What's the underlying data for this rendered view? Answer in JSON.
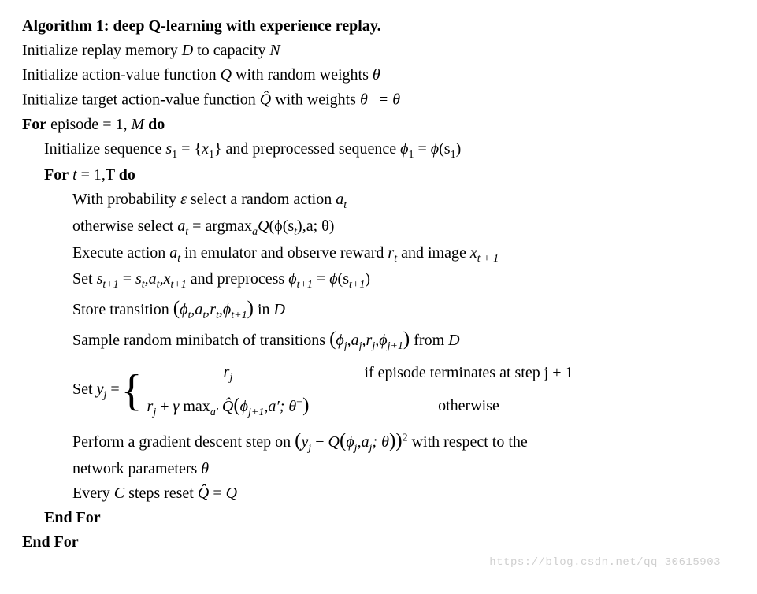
{
  "title_bold": "Algorithm 1: deep Q-learning with experience replay.",
  "init1_a": "Initialize replay memory ",
  "init1_D": "D",
  "init1_b": " to capacity ",
  "init1_N": "N",
  "init2_a": "Initialize action-value function ",
  "init2_Q": "Q",
  "init2_b": " with random weights ",
  "init2_theta": "θ",
  "init3_a": "Initialize target action-value function ",
  "init3_Qhat": "Q̂",
  "init3_b": " with weights ",
  "init3_c": "θ",
  "init3_minus": "−",
  "init3_eq": " = θ",
  "for1_a": "For",
  "for1_b": " episode = 1, ",
  "for1_M": "M",
  "for1_do": " do",
  "seq_a": "Initialize sequence ",
  "seq_s1": "s",
  "seq_eq": " = {",
  "seq_x1": "x",
  "seq_close": "} and preprocessed sequence ",
  "seq_phi1": "ϕ",
  "seq_eq2": " = ",
  "seq_phi": "ϕ",
  "seq_paren": "(s",
  "seq_end": ")",
  "for2_a": "For",
  "for2_b": " t",
  "for2_c": " = 1,T ",
  "for2_do": "do",
  "eps_a": "With probability ",
  "eps_e": "ε",
  "eps_b": " select a random action ",
  "eps_at": "a",
  "otherwise_a": "otherwise select ",
  "otherwise_at": "a",
  "otherwise_eq": " = argmax",
  "otherwise_sub": "a",
  "otherwise_Q": "Q",
  "otherwise_args": "(ϕ(s",
  "otherwise_args2": "),a; θ)",
  "exec_a": "Execute action ",
  "exec_at": "a",
  "exec_b": " in emulator and observe reward ",
  "exec_rt": "r",
  "exec_c": " and image ",
  "exec_xt": "x",
  "exec_sub_tp1": "t + 1",
  "set_a": "Set ",
  "set_s": "s",
  "set_eq": " = ",
  "set_list": "s",
  "set_comma1": ",a",
  "set_comma2": ",x",
  "set_b": " and preprocess ",
  "set_phi": "ϕ",
  "set_eq2": " = ",
  "set_phifn": "ϕ",
  "set_paren": "(s",
  "set_end": ")",
  "store_a": "Store transition ",
  "store_tuple_open": "(",
  "store_phi": "ϕ",
  "store_c1": ",a",
  "store_c2": ",r",
  "store_c3": ",ϕ",
  "store_close": ")",
  "store_b": " in ",
  "store_D": "D",
  "sample_a": "Sample random minibatch of transitions ",
  "sample_open": "(",
  "sample_phi": "ϕ",
  "sample_c1": ",a",
  "sample_c2": ",r",
  "sample_c3": ",ϕ",
  "sample_close": ")",
  "sample_b": " from ",
  "sample_D": "D",
  "yj_set": "Set ",
  "yj_y": "y",
  "yj_eq": " = ",
  "case1_val": "r",
  "case1_sub": "j",
  "case1_cond_a": "if episode terminates at step j + 1",
  "case2_r": "r",
  "case2_plus": " + ",
  "case2_gamma": "γ",
  "case2_max": " max",
  "case2_maxsub": "a′",
  "case2_sp": " ",
  "case2_Qhat": "Q̂",
  "case2_open": "(",
  "case2_phi": "ϕ",
  "case2_jp1": "j+1",
  "case2_comma": ",a′; θ",
  "case2_minus": "−",
  "case2_close": ")",
  "case2_cond": "otherwise",
  "grad_a": "Perform a gradient descent step on ",
  "grad_open": "(",
  "grad_y": "y",
  "grad_minus": " − ",
  "grad_Q": "Q",
  "grad_qopen": "(",
  "grad_phi": "ϕ",
  "grad_c1": ",a",
  "grad_c2": "; θ",
  "grad_qclose": ")",
  "grad_close": ")",
  "grad_sq": "2",
  "grad_b": " with respect to the",
  "grad_c": "network parameters ",
  "grad_theta": "θ",
  "every_a": "Every ",
  "every_C": "C",
  "every_b": " steps reset ",
  "every_Qhat": "Q̂",
  "every_eq": " = ",
  "every_Q": "Q",
  "endfor": "End For",
  "watermark": "https://blog.csdn.net/qq_30615903",
  "sub_1": "1",
  "sub_t": "t",
  "sub_tp1": "t+1",
  "sub_j": "j",
  "sub_jp1": "j+1"
}
